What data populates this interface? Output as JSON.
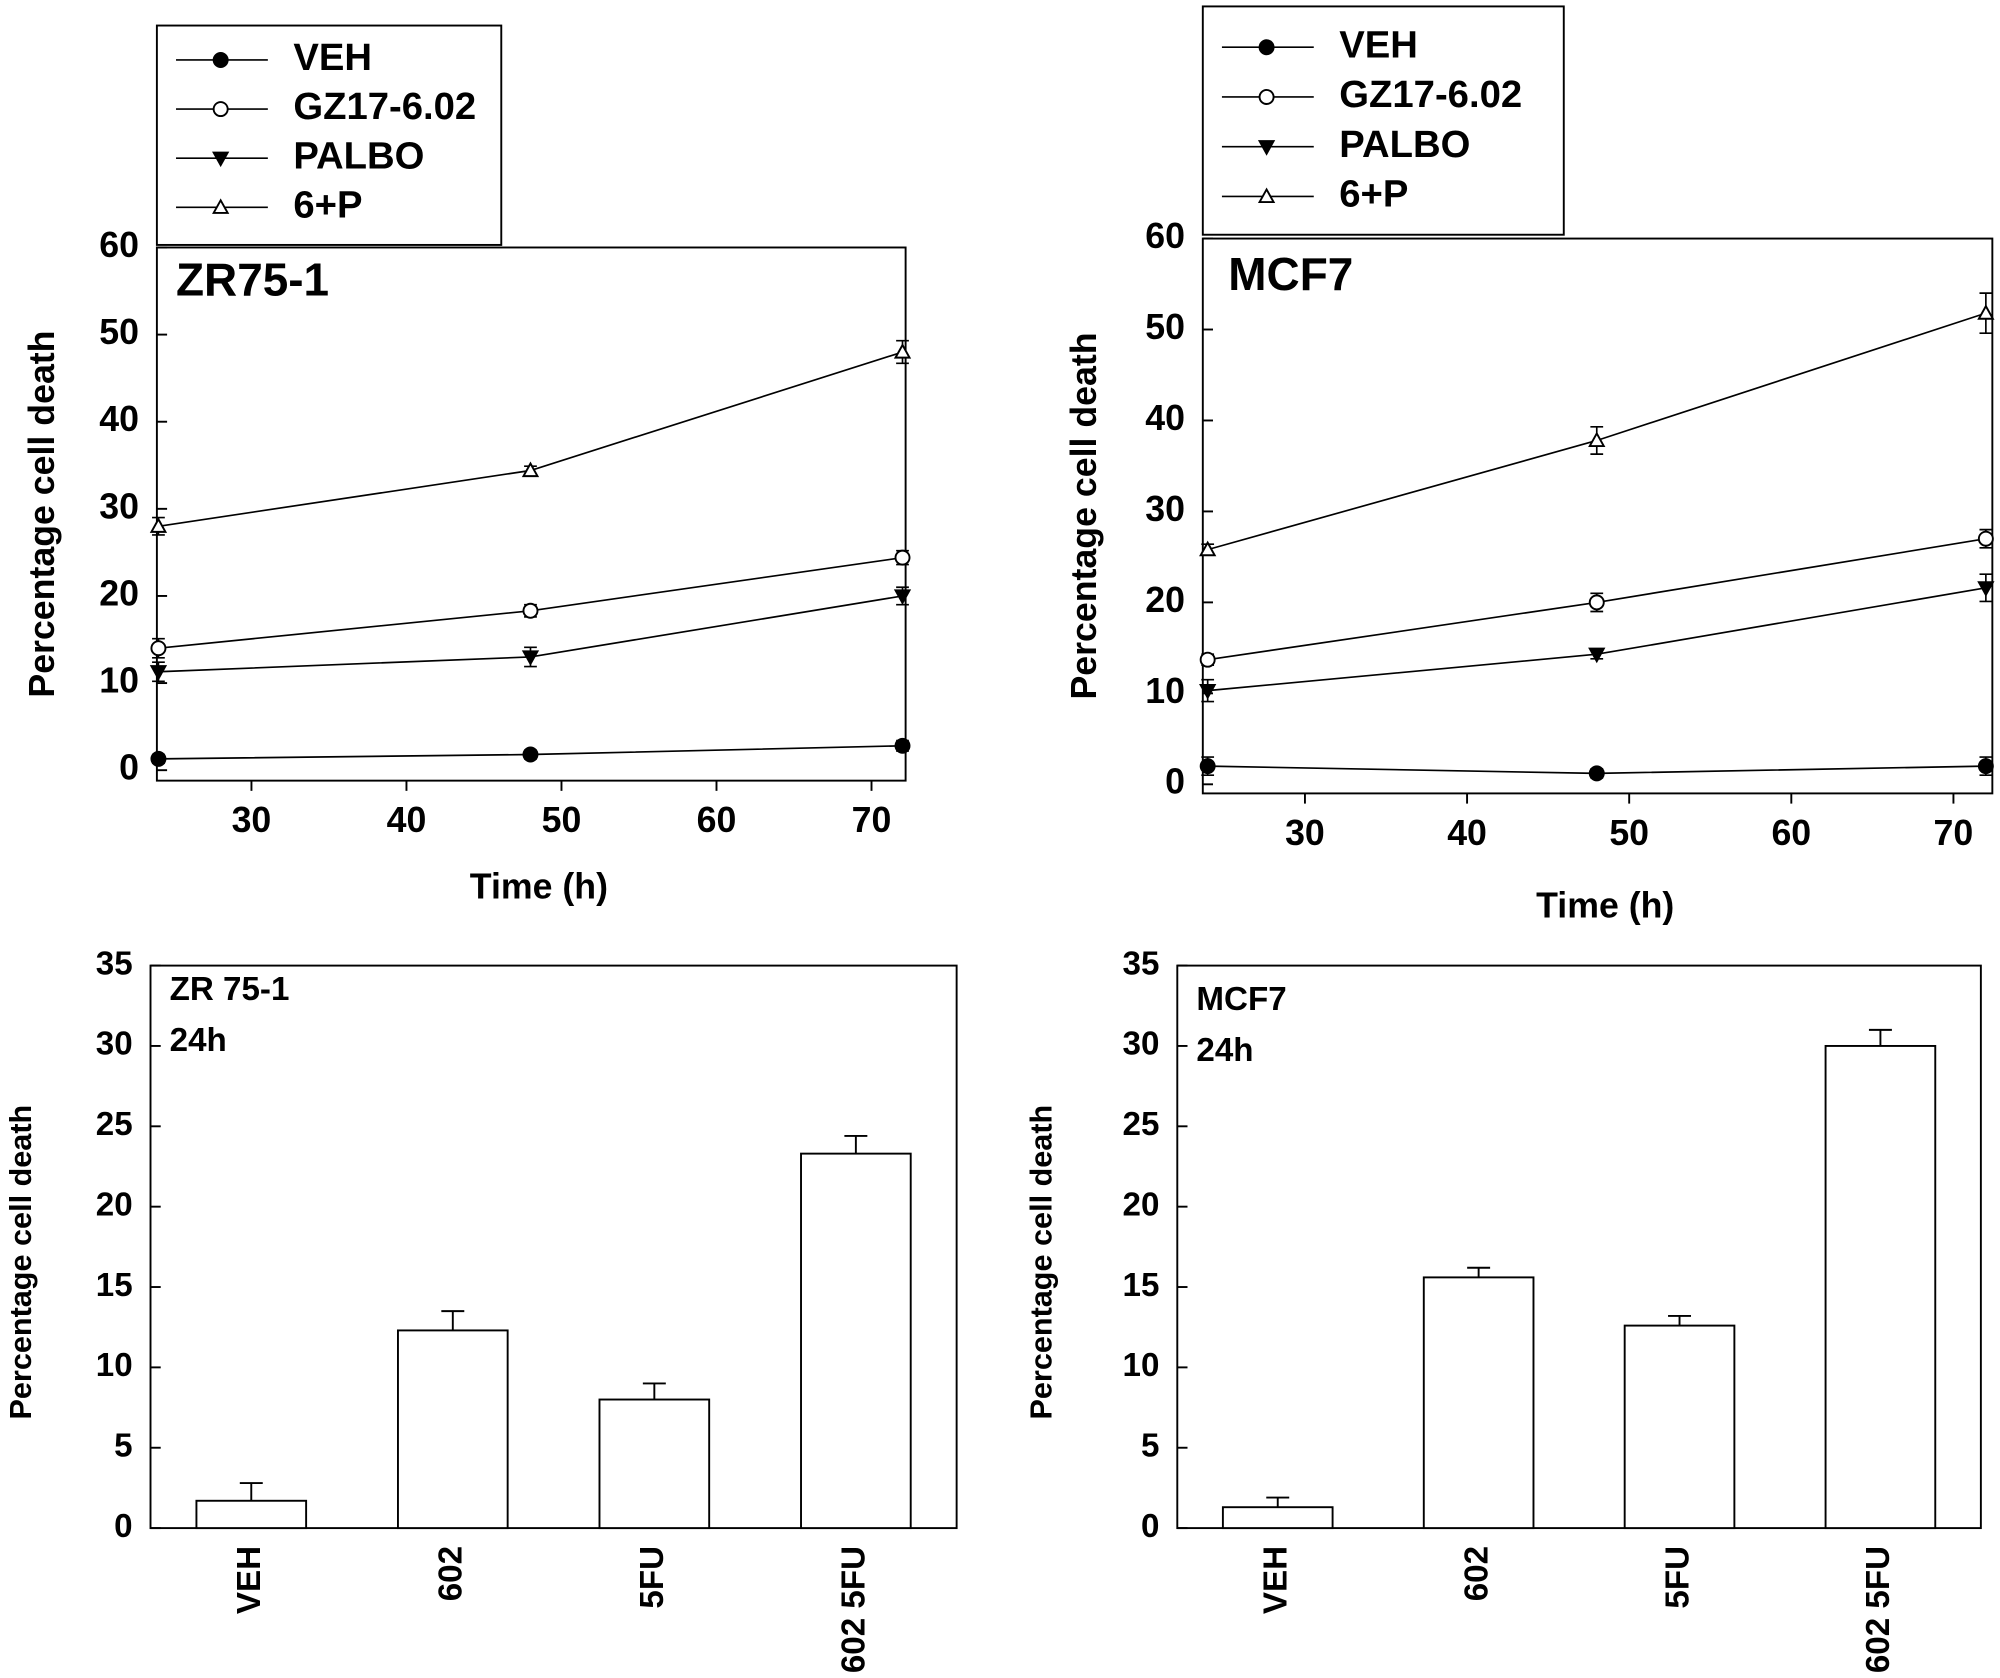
{
  "chart_data": [
    {
      "type": "line",
      "title": "ZR75-1",
      "xlabel": "Time (h)",
      "ylabel": "Percentage cell death",
      "x": [
        24,
        48,
        72
      ],
      "xlim": [
        23.9,
        72.2
      ],
      "ylim": [
        -1.2,
        60
      ],
      "xticks": [
        30,
        40,
        50,
        60,
        70
      ],
      "yticks": [
        0,
        10,
        20,
        30,
        40,
        50,
        60
      ],
      "series": [
        {
          "name": "VEH",
          "marker": "circle",
          "filled": true,
          "color": "#000000",
          "values": [
            1.3,
            1.8,
            2.8
          ],
          "errors": [
            0.5,
            0.5,
            0.6
          ]
        },
        {
          "name": "GZ17-6.02",
          "marker": "circle",
          "filled": false,
          "color": "#000000",
          "values": [
            14,
            18.3,
            24.4
          ],
          "errors": [
            1.1,
            0.7,
            0.8
          ]
        },
        {
          "name": "PALBO",
          "marker": "triangle-down",
          "filled": true,
          "color": "#000000",
          "values": [
            11.3,
            13,
            20
          ],
          "errors": [
            1.1,
            1.1,
            1
          ]
        },
        {
          "name": "6+P",
          "marker": "triangle-up",
          "filled": false,
          "color": "#000000",
          "values": [
            28,
            34.4,
            48
          ],
          "errors": [
            1,
            0.5,
            1.3
          ]
        }
      ]
    },
    {
      "type": "line",
      "title": "MCF7",
      "xlabel": "Time (h)",
      "ylabel": "Percentage cell death",
      "x": [
        24,
        48,
        72
      ],
      "xlim": [
        23.7,
        72.4
      ],
      "ylim": [
        -1,
        60
      ],
      "xticks": [
        30,
        40,
        50,
        60,
        70
      ],
      "yticks": [
        0,
        10,
        20,
        30,
        40,
        50,
        60
      ],
      "series": [
        {
          "name": "VEH",
          "marker": "circle",
          "filled": true,
          "color": "#000000",
          "values": [
            2,
            1.2,
            2
          ],
          "errors": [
            1,
            0.5,
            1
          ]
        },
        {
          "name": "GZ17-6.02",
          "marker": "circle",
          "filled": false,
          "color": "#000000",
          "values": [
            13.7,
            20,
            27
          ],
          "errors": [
            0.6,
            1,
            1
          ]
        },
        {
          "name": "PALBO",
          "marker": "triangle-down",
          "filled": true,
          "color": "#000000",
          "values": [
            10.3,
            14.3,
            21.6
          ],
          "errors": [
            1.2,
            0.5,
            1.5
          ]
        },
        {
          "name": "6+P",
          "marker": "triangle-up",
          "filled": false,
          "color": "#000000",
          "values": [
            25.8,
            37.8,
            51.8
          ],
          "errors": [
            0.6,
            1.5,
            2.2
          ]
        }
      ]
    },
    {
      "type": "bar",
      "annotation": [
        "ZR 75-1",
        "24h"
      ],
      "ylabel": "Percentage cell death",
      "categories": [
        "VEH",
        "602",
        "5FU",
        "602 5FU"
      ],
      "values": [
        1.7,
        12.3,
        8,
        23.3
      ],
      "errors": [
        1.1,
        1.2,
        1,
        1.1
      ],
      "color": "#ffffff",
      "ylim": [
        0,
        35
      ],
      "yticks": [
        0,
        5,
        10,
        15,
        20,
        25,
        30,
        35
      ]
    },
    {
      "type": "bar",
      "annotation": [
        "MCF7",
        "24h"
      ],
      "ylabel": "Percentage cell death",
      "categories": [
        "VEH",
        "602",
        "5FU",
        "602 5FU"
      ],
      "values": [
        1.3,
        15.6,
        12.6,
        30
      ],
      "errors": [
        0.6,
        0.6,
        0.6,
        1
      ],
      "color": "#ffffff",
      "ylim": [
        0,
        35
      ],
      "yticks": [
        0,
        5,
        10,
        15,
        20,
        25,
        30,
        35
      ]
    }
  ]
}
